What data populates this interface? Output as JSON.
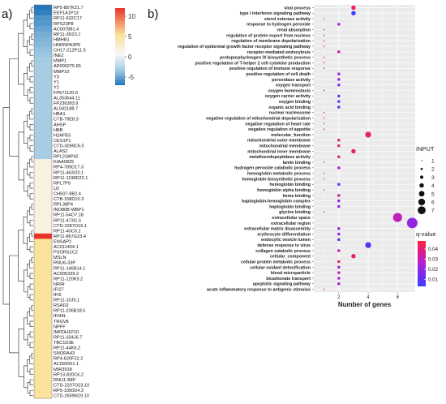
{
  "figure": {
    "panel_a_label": "a)",
    "panel_b_label": "b)"
  },
  "chart_data": [
    {
      "type": "heatmap",
      "panel": "a)",
      "colorbar": {
        "ticks": [
          10,
          5,
          0,
          -5
        ],
        "range": [
          -7,
          12
        ],
        "colors": {
          "high": "#e8332a",
          "mid_high": "#fbe39b",
          "mid": "#f7f7f7",
          "mid_low": "#a6cde3",
          "low": "#2277bd"
        }
      },
      "genes": [
        {
          "name": "RP5-857K21.7",
          "value": -6.5
        },
        {
          "name": "EEF1A1P13",
          "value": -6.0
        },
        {
          "name": "RP11-632C17",
          "value": -5.0
        },
        {
          "name": "RPS23P8",
          "value": -4.8
        },
        {
          "name": "AC007881.4",
          "value": -4.2
        },
        {
          "name": "RP11-3D23.1",
          "value": -3.6
        },
        {
          "name": "HMHB1",
          "value": -3.3
        },
        {
          "name": "HNRNPA3P6",
          "value": -3.0
        },
        {
          "name": "CH17-212P11.5",
          "value": -2.6
        },
        {
          "name": "INE2",
          "value": -2.3
        },
        {
          "name": "MMP1",
          "value": -2.1
        },
        {
          "name": "AP000275.65",
          "value": -2.0
        },
        {
          "name": "MMP10",
          "value": -2.0
        },
        {
          "name": "Y3",
          "value": -2.0
        },
        {
          "name": "Y1",
          "value": -2.0
        },
        {
          "name": "Y2",
          "value": -2.0
        },
        {
          "name": "FP671120.6",
          "value": -2.0
        },
        {
          "name": "AL353644.11",
          "value": -2.0
        },
        {
          "name": "FP236383.9",
          "value": -2.0
        },
        {
          "name": "AL592188.7",
          "value": -2.0
        },
        {
          "name": "HBA1",
          "value": -2.0
        },
        {
          "name": "CTB-79E8.3",
          "value": -2.0
        },
        {
          "name": "AHSP",
          "value": -2.0
        },
        {
          "name": "HBB",
          "value": -2.0
        },
        {
          "name": "H2AFB3",
          "value": -2.0
        },
        {
          "name": "CES1P1",
          "value": -2.0
        },
        {
          "name": "CTD-3099C6.5",
          "value": -2.0
        },
        {
          "name": "ALAS2",
          "value": -2.0
        },
        {
          "name": "RPL23AP42",
          "value": -2.0
        },
        {
          "name": "KIAA0825",
          "value": 1.0
        },
        {
          "name": "RP4-789D17.3",
          "value": 1.0
        },
        {
          "name": "RP11-463I20.1",
          "value": 1.0
        },
        {
          "name": "RP11-1198D22.1",
          "value": 1.0
        },
        {
          "name": "RPL7P9",
          "value": 1.0
        },
        {
          "name": "U2",
          "value": 1.0
        },
        {
          "name": "CH507-9B2.4",
          "value": 1.0
        },
        {
          "name": "CTB-158D10.3",
          "value": 1.0
        },
        {
          "name": "RPL38P4",
          "value": 1.0
        },
        {
          "name": "INO80B-WBP1",
          "value": 1.0
        },
        {
          "name": "RP11-54O7.18",
          "value": 1.0
        },
        {
          "name": "RP11-473I1.5",
          "value": 1.0
        },
        {
          "name": "CTD-2287O16.1",
          "value": 1.0
        },
        {
          "name": "RP11-40C6.2",
          "value": 1.0
        },
        {
          "name": "RP11-867G23.4",
          "value": 12.0
        },
        {
          "name": "ENSAP2",
          "value": 3.5
        },
        {
          "name": "AC011404.1",
          "value": 3.5
        },
        {
          "name": "PSORS1C2",
          "value": 3.5
        },
        {
          "name": "MSLN",
          "value": 3.5
        },
        {
          "name": "RNU6-33P",
          "value": 3.5
        },
        {
          "name": "RP11-146B14.1",
          "value": 3.5
        },
        {
          "name": "AC005339.2",
          "value": 3.5
        },
        {
          "name": "RP11-120K9.2",
          "value": 3.5
        },
        {
          "name": "NRIR",
          "value": 3.5
        },
        {
          "name": "IFI27",
          "value": 3.5
        },
        {
          "name": "IFI6",
          "value": 3.5
        },
        {
          "name": "RP11-10J5.1",
          "value": 3.5
        },
        {
          "name": "RSAD2",
          "value": 3.5
        },
        {
          "name": "RP11-236B18.5",
          "value": 3.5
        },
        {
          "name": "IFI44L",
          "value": 3.5
        },
        {
          "name": "TRGV8",
          "value": 3.5
        },
        {
          "name": "NPFF",
          "value": 3.5
        },
        {
          "name": "IMPDH1P10",
          "value": 3.5
        },
        {
          "name": "RP11-334J6.7",
          "value": 3.5
        },
        {
          "name": "TBC1D3E",
          "value": 3.5
        },
        {
          "name": "RP11-44K6.2",
          "value": 3.5
        },
        {
          "name": "SNORA43",
          "value": 3.5
        },
        {
          "name": "RP4-620F22.2",
          "value": 6.0
        },
        {
          "name": "AC092651.1",
          "value": 4.0
        },
        {
          "name": "MIR3918",
          "value": 3.5
        },
        {
          "name": "RP13-820C6.2",
          "value": 3.5
        },
        {
          "name": "RNU1-89P",
          "value": 3.5
        },
        {
          "name": "CTD-2207O23.10",
          "value": 3.5
        },
        {
          "name": "RP5-1050D4.3",
          "value": 3.5
        },
        {
          "name": "CTD-2659N19.10",
          "value": 3.5
        }
      ]
    },
    {
      "type": "scatter",
      "panel": "b)",
      "xlabel": "Number of genes",
      "xticks": [
        2,
        4,
        6
      ],
      "xlim": [
        0.3,
        7.2
      ],
      "size_legend": {
        "title": "INPUT",
        "values": [
          1,
          2,
          3,
          4,
          5,
          6,
          7
        ]
      },
      "color_legend": {
        "title": "q-value",
        "ticks": [
          0.04,
          0.03,
          0.02,
          0.01
        ],
        "range": [
          0.003,
          0.048
        ],
        "high_color": "#ff1f3f",
        "low_color": "#3c3cff"
      },
      "terms": [
        {
          "label": "viral process",
          "x": 3,
          "q": 0.044
        },
        {
          "label": "type I interferon signaling pathway",
          "x": 3,
          "q": 0.004
        },
        {
          "label": "sterol esterase activity",
          "x": 1,
          "q": 0.045
        },
        {
          "label": "response to hydrogen peroxide",
          "x": 2,
          "q": 0.022
        },
        {
          "label": "renal absorption",
          "x": 1,
          "q": 0.045
        },
        {
          "label": "regulation of protein export from nucleus",
          "x": 1,
          "q": 0.045
        },
        {
          "label": "regulation of membrane depolarization",
          "x": 1,
          "q": 0.045
        },
        {
          "label": "regulation of epidermal growth factor receptor signaling pathway",
          "x": 1,
          "q": 0.045
        },
        {
          "label": "receptor-mediated endocytosis",
          "x": 2,
          "q": 0.036
        },
        {
          "label": "protoporphyrinogen IX biosynthetic process",
          "x": 1,
          "q": 0.045
        },
        {
          "label": "positive regulation of T-helper 2 cell cytokine production",
          "x": 1,
          "q": 0.045
        },
        {
          "label": "positive regulation of immune response",
          "x": 1,
          "q": 0.045
        },
        {
          "label": "positive regulation of cell death",
          "x": 2,
          "q": 0.022
        },
        {
          "label": "peroxidase activity",
          "x": 2,
          "q": 0.018
        },
        {
          "label": "oxygen transport",
          "x": 2,
          "q": 0.012
        },
        {
          "label": "oxygen homeostasis",
          "x": 1,
          "q": 0.045
        },
        {
          "label": "oxygen carrier activity",
          "x": 2,
          "q": 0.008
        },
        {
          "label": "oxygen binding",
          "x": 2,
          "q": 0.01
        },
        {
          "label": "organic acid binding",
          "x": 2,
          "q": 0.01
        },
        {
          "label": "nuclear nucleosome",
          "x": 1,
          "q": 0.045
        },
        {
          "label": "negative regulation of mitochondrial depolarization",
          "x": 1,
          "q": 0.045
        },
        {
          "label": "negative regulation of heart rate",
          "x": 1,
          "q": 0.045
        },
        {
          "label": "negative regulation of appetite",
          "x": 1,
          "q": 0.045
        },
        {
          "label": "molecular_function",
          "x": 4,
          "q": 0.042
        },
        {
          "label": "mitochondrial outer membrane",
          "x": 2,
          "q": 0.038
        },
        {
          "label": "mitochondrial membrane",
          "x": 2,
          "q": 0.04
        },
        {
          "label": "mitochondrial inner membrane",
          "x": 3,
          "q": 0.04
        },
        {
          "label": "metalloendopeptidase activity",
          "x": 2,
          "q": 0.038
        },
        {
          "label": "lamin binding",
          "x": 1,
          "q": 0.045
        },
        {
          "label": "hydrogen peroxide catabolic process",
          "x": 2,
          "q": 0.022
        },
        {
          "label": "hemoglobin metabolic process",
          "x": 1,
          "q": 0.045
        },
        {
          "label": "hemoglobin biosynthetic process",
          "x": 1,
          "q": 0.045
        },
        {
          "label": "hemoglobin binding",
          "x": 2,
          "q": 0.008
        },
        {
          "label": "hemoglobin alpha binding",
          "x": 1,
          "q": 0.045
        },
        {
          "label": "heme binding",
          "x": 2,
          "q": 0.036
        },
        {
          "label": "haptoglobin-hemoglobin complex",
          "x": 2,
          "q": 0.018
        },
        {
          "label": "haptoglobin binding",
          "x": 2,
          "q": 0.02
        },
        {
          "label": "glycine binding",
          "x": 1,
          "q": 0.045
        },
        {
          "label": "extracellular space",
          "x": 6,
          "q": 0.03
        },
        {
          "label": "extracellular region",
          "x": 7,
          "q": 0.02
        },
        {
          "label": "extracellular matrix disassembly",
          "x": 2,
          "q": 0.022
        },
        {
          "label": "erythrocyte differentiation",
          "x": 2,
          "q": 0.02
        },
        {
          "label": "endocytic vesicle lumen",
          "x": 2,
          "q": 0.012
        },
        {
          "label": "defense response to virus",
          "x": 4,
          "q": 0.006
        },
        {
          "label": "collagen catabolic process",
          "x": 2,
          "q": 0.03
        },
        {
          "label": "cellular_component",
          "x": 3,
          "q": 0.04
        },
        {
          "label": "cellular protein metabolic process",
          "x": 2,
          "q": 0.042
        },
        {
          "label": "cellular oxidant detoxification",
          "x": 2,
          "q": 0.022
        },
        {
          "label": "blood microparticle",
          "x": 2,
          "q": 0.03
        },
        {
          "label": "bicarbonate transport",
          "x": 2,
          "q": 0.025
        },
        {
          "label": "apoptotic signaling pathway",
          "x": 2,
          "q": 0.025
        },
        {
          "label": "acute inflammatory response to antigenic stimulus",
          "x": 1,
          "q": 0.045
        }
      ]
    }
  ]
}
